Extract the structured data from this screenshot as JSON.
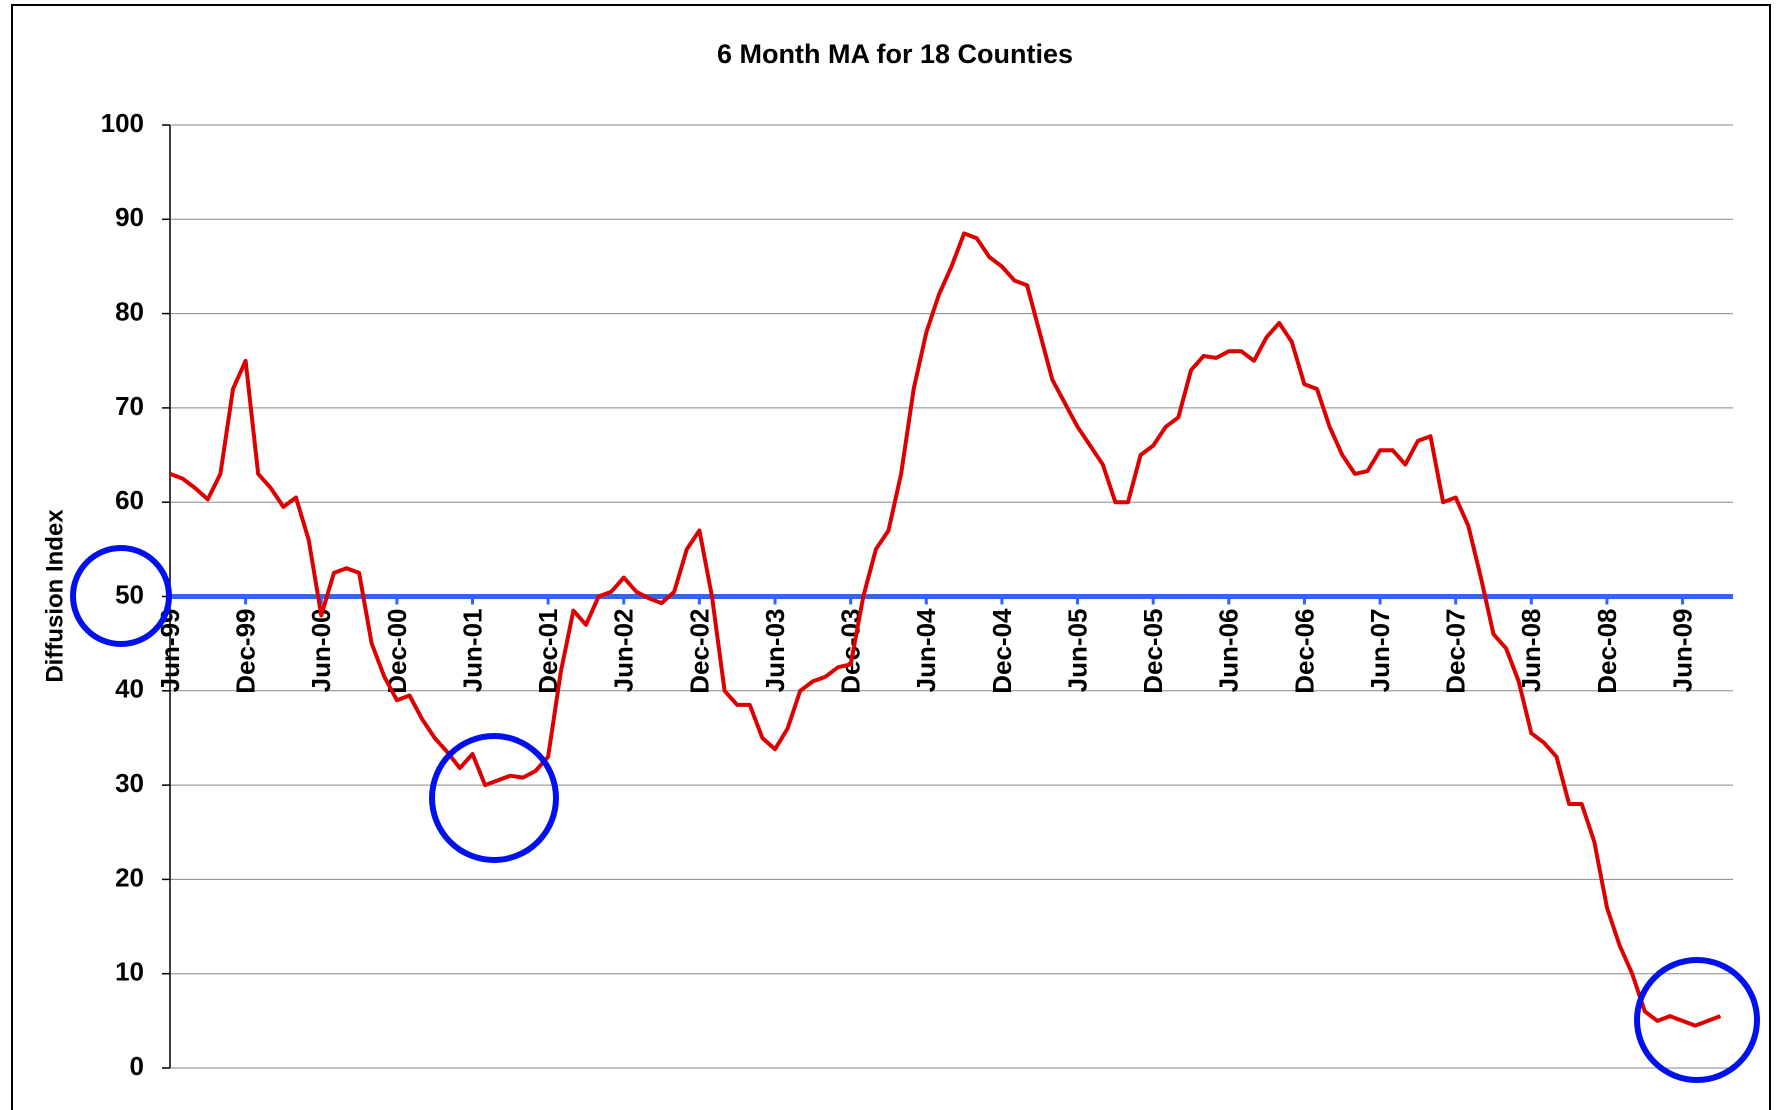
{
  "chart_data": {
    "type": "line",
    "title": "6 Month MA for 18 Counties",
    "y_label": "Diffusion Index",
    "categories": [
      "Jun-99",
      null,
      null,
      null,
      null,
      null,
      "Dec-99",
      null,
      null,
      null,
      null,
      null,
      "Jun-00",
      null,
      null,
      null,
      null,
      null,
      "Dec-00",
      null,
      null,
      null,
      null,
      null,
      "Jun-01",
      null,
      null,
      null,
      null,
      null,
      "Dec-01",
      null,
      null,
      null,
      null,
      null,
      "Jun-02",
      null,
      null,
      null,
      null,
      null,
      "Dec-02",
      null,
      null,
      null,
      null,
      null,
      "Jun-03",
      null,
      null,
      null,
      null,
      null,
      "Dec-03",
      null,
      null,
      null,
      null,
      null,
      "Jun-04",
      null,
      null,
      null,
      null,
      null,
      "Dec-04",
      null,
      null,
      null,
      null,
      null,
      "Jun-05",
      null,
      null,
      null,
      null,
      null,
      "Dec-05",
      null,
      null,
      null,
      null,
      null,
      "Jun-06",
      null,
      null,
      null,
      null,
      null,
      "Dec-06",
      null,
      null,
      null,
      null,
      null,
      "Jun-07",
      null,
      null,
      null,
      null,
      null,
      "Dec-07",
      null,
      null,
      null,
      null,
      null,
      "Jun-08",
      null,
      null,
      null,
      null,
      null,
      "Dec-08",
      null,
      null,
      null,
      null,
      null,
      "Jun-09",
      null,
      null,
      null
    ],
    "values": [
      63,
      62.5,
      61.5,
      60.3,
      63,
      72,
      75,
      63,
      61.5,
      59.5,
      60.5,
      56,
      48,
      52.5,
      53,
      52.5,
      45,
      41.5,
      39,
      39.5,
      37,
      35,
      33.5,
      31.8,
      33.3,
      30,
      30.5,
      31,
      30.8,
      31.5,
      33,
      42,
      48.5,
      47,
      50,
      50.5,
      52,
      50.5,
      49.8,
      49.3,
      50.5,
      55,
      57,
      50,
      40,
      38.5,
      38.5,
      35,
      33.8,
      36,
      40,
      41,
      41.5,
      42.5,
      42.8,
      50,
      55,
      57,
      63,
      72,
      78,
      82,
      85,
      88.5,
      88,
      86,
      85,
      83.5,
      83,
      78,
      73,
      70.5,
      68,
      66,
      64,
      60,
      60,
      65,
      66,
      68,
      69,
      74,
      75.5,
      75.3,
      76,
      76,
      75,
      77.5,
      79,
      77,
      72.5,
      72,
      68,
      65,
      63,
      63.3,
      65.5,
      65.5,
      64,
      66.5,
      67,
      60,
      60.5,
      57.5,
      52,
      46,
      44.5,
      41,
      35.5,
      34.5,
      33,
      28,
      28,
      24,
      17,
      13,
      10,
      6,
      5,
      5.5,
      5,
      4.5,
      5,
      5.5
    ],
    "color": "#dd0000",
    "ylim": [
      0,
      100
    ],
    "yticks": [
      0,
      10,
      20,
      30,
      40,
      50,
      60,
      70,
      80,
      90,
      100
    ],
    "grid": true,
    "reference_line": {
      "value": 50,
      "color": "#3366ee"
    }
  }
}
